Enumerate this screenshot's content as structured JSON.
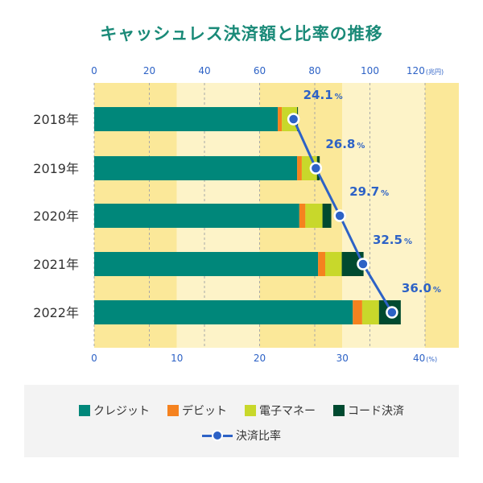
{
  "title": "キャッシュレス決済額と比率の推移",
  "colors": {
    "credit": "#00877a",
    "debit": "#f5821f",
    "emoney": "#c8d82b",
    "code": "#004a30",
    "ratio": "#2d62c6",
    "band_dark": "#fbe899",
    "band_light": "#fdf3c8",
    "axis_text": "#2d62c6",
    "title": "#1a8a78"
  },
  "chart_data": {
    "type": "bar",
    "orientation": "horizontal-stacked",
    "title": "キャッシュレス決済額と比率の推移",
    "categories": [
      "2018年",
      "2019年",
      "2020年",
      "2021年",
      "2022年"
    ],
    "top_axis": {
      "label_unit": "(兆円)",
      "ticks": [
        "0",
        "20",
        "40",
        "60",
        "80",
        "100",
        "120"
      ],
      "range": [
        0,
        120
      ]
    },
    "bottom_axis": {
      "label_unit": "(%)",
      "ticks": [
        "0",
        "10",
        "20",
        "30",
        "40"
      ],
      "range": [
        0,
        40
      ]
    },
    "series": [
      {
        "name": "クレジット",
        "key": "credit",
        "values": [
          66.6,
          73.6,
          74.4,
          81.2,
          93.8
        ]
      },
      {
        "name": "デビット",
        "key": "debit",
        "values": [
          1.5,
          1.7,
          2.2,
          2.6,
          3.4
        ]
      },
      {
        "name": "電子マネー",
        "key": "emoney",
        "values": [
          5.5,
          5.5,
          6.2,
          6.0,
          6.1
        ]
      },
      {
        "name": "コード決済",
        "key": "code",
        "values": [
          0.3,
          1.0,
          3.2,
          7.9,
          7.9
        ]
      }
    ],
    "line_series": {
      "name": "決済比率",
      "values": [
        24.1,
        26.8,
        29.7,
        32.5,
        36.0
      ],
      "labels": [
        "24.1",
        "26.8",
        "29.7",
        "32.5",
        "36.0"
      ],
      "unit": "%"
    },
    "grid": true,
    "legend": "bottom"
  },
  "legend": {
    "items": [
      {
        "label": "クレジット",
        "key": "credit"
      },
      {
        "label": "デビット",
        "key": "debit"
      },
      {
        "label": "電子マネー",
        "key": "emoney"
      },
      {
        "label": "コード決済",
        "key": "code"
      }
    ],
    "line_label": "決済比率"
  }
}
